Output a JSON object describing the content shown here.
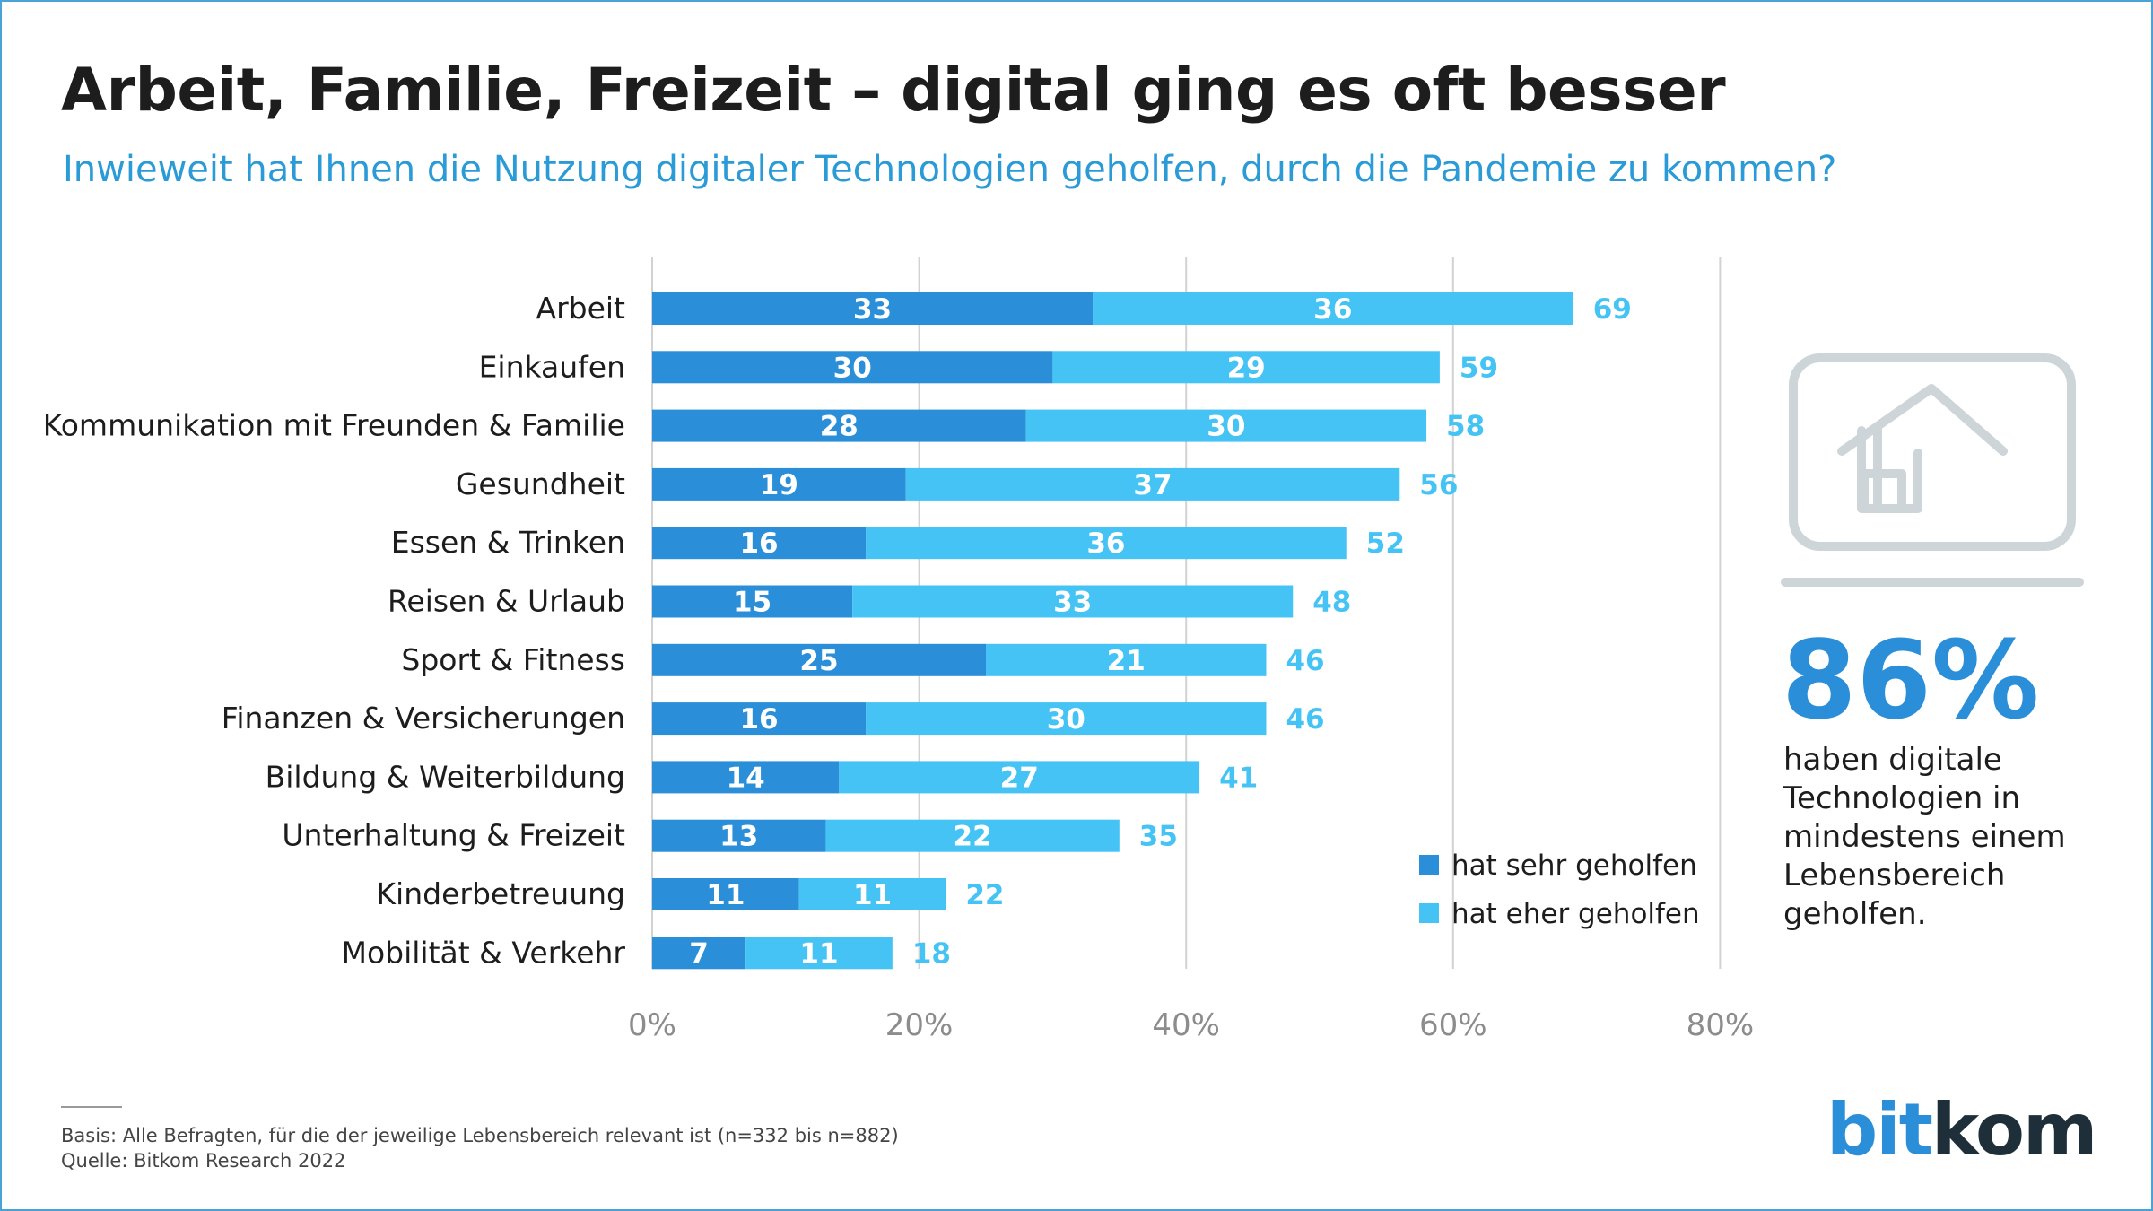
{
  "title": "Arbeit, Familie, Freizeit – digital ging es oft besser",
  "subtitle": "Inwieweit hat Ihnen die Nutzung digitaler Technologien geholfen, durch die Pandemie zu kommen?",
  "colors": {
    "dark": "#2a8fd8",
    "light": "#45c3f5",
    "total_label": "#45c3f5",
    "grid": "#d2d2d2",
    "icon": "#cdd5d8"
  },
  "chart_data": {
    "type": "bar",
    "orientation": "horizontal",
    "stacked": true,
    "categories": [
      "Arbeit",
      "Einkaufen",
      "Kommunikation mit Freunden & Familie",
      "Gesundheit",
      "Essen & Trinken",
      "Reisen & Urlaub",
      "Sport & Fitness",
      "Finanzen & Versicherungen",
      "Bildung & Weiterbildung",
      "Unterhaltung & Freizeit",
      "Kinderbetreuung",
      "Mobilität & Verkehr"
    ],
    "series": [
      {
        "name": "hat sehr geholfen",
        "values": [
          33,
          30,
          28,
          19,
          16,
          15,
          25,
          16,
          14,
          13,
          11,
          7
        ]
      },
      {
        "name": "hat eher geholfen",
        "values": [
          36,
          29,
          30,
          37,
          36,
          33,
          21,
          30,
          27,
          22,
          11,
          11
        ]
      }
    ],
    "totals": [
      69,
      59,
      58,
      56,
      52,
      48,
      46,
      46,
      41,
      35,
      22,
      18
    ],
    "x_ticks": [
      "0%",
      "20%",
      "40%",
      "60%",
      "80%"
    ],
    "xlim": [
      0,
      80
    ],
    "grid": true,
    "legend_position": "bottom-right"
  },
  "highlight": {
    "value": "86%",
    "text": "haben digitale Technologien in mindestens einem Lebensbereich geholfen."
  },
  "footer": {
    "basis": "Basis: Alle Befragten, für die der jeweilige Lebensbereich relevant ist (n=332 bis n=882)",
    "source": "Quelle: Bitkom Research 2022"
  },
  "logo": {
    "part1": "bit",
    "part2": "kom"
  }
}
